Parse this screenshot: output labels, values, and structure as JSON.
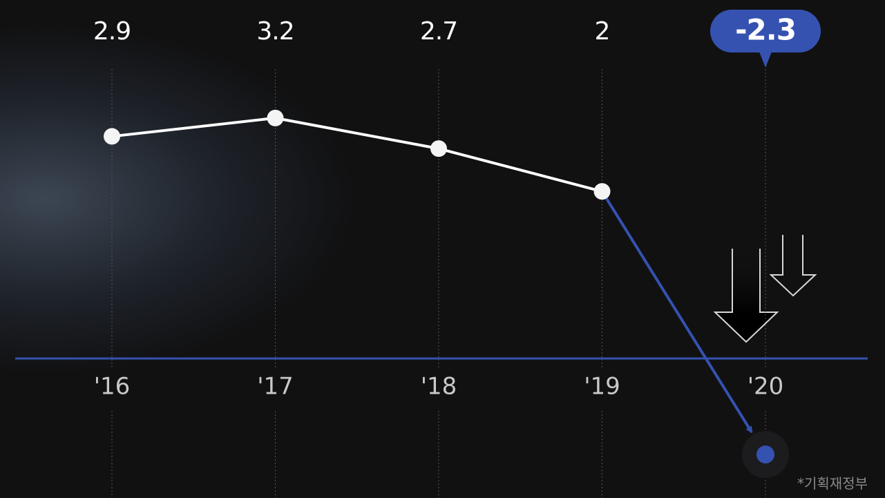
{
  "chart_data": {
    "type": "line",
    "categories": [
      "'16",
      "'17",
      "'18",
      "'19",
      "'20"
    ],
    "values": [
      2.9,
      3.2,
      2.7,
      2.0,
      -2.3
    ],
    "color": "#ffffff",
    "negative_color": "#3552b0",
    "ylim": [
      -3,
      4
    ],
    "source": "*기획재정부"
  }
}
